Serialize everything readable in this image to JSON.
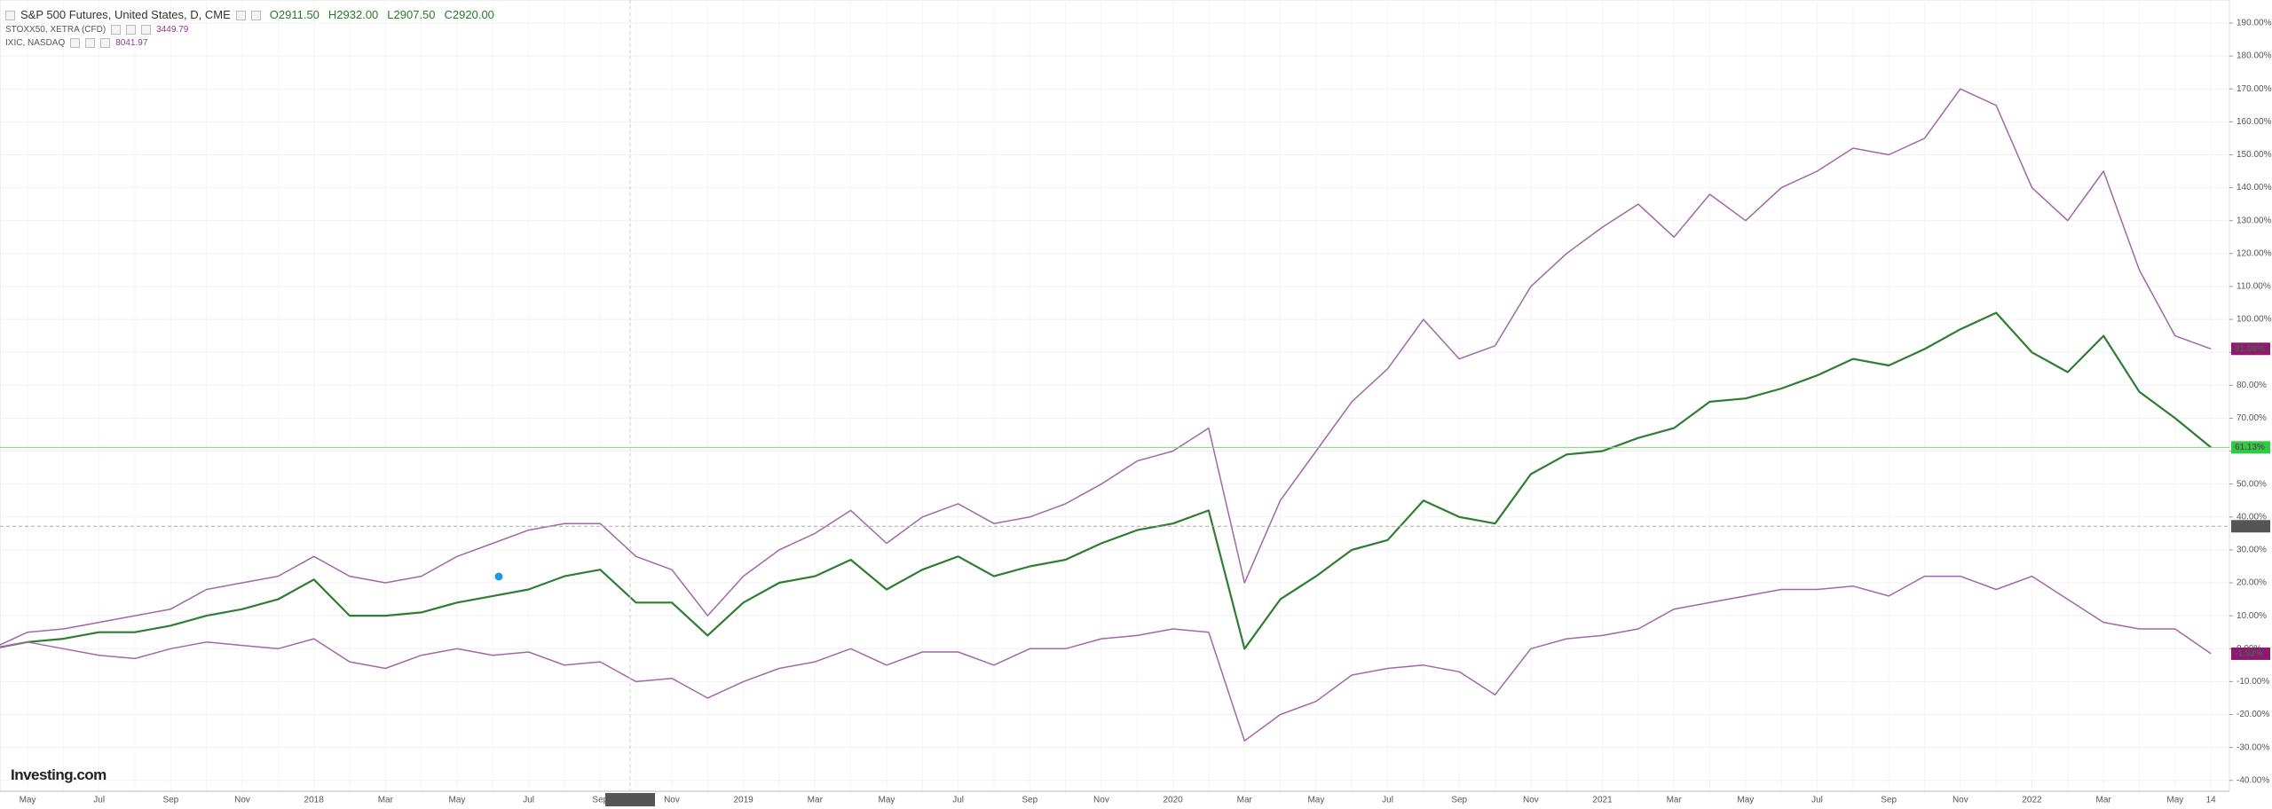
{
  "chart_data": {
    "type": "line",
    "logo": "Investing.com",
    "categories": [
      null,
      "May",
      null,
      "Jul",
      null,
      "Sep",
      null,
      "Nov",
      null,
      "2018",
      null,
      "Mar",
      null,
      "May",
      null,
      "Jul",
      null,
      "Sep",
      null,
      "Nov",
      null,
      "2019",
      null,
      "Mar",
      null,
      "May",
      null,
      "Jul",
      null,
      "Sep",
      null,
      "Nov",
      null,
      "2020",
      null,
      "Mar",
      null,
      "May",
      null,
      "Jul",
      null,
      "Sep",
      null,
      "Nov",
      null,
      "2021",
      null,
      "Mar",
      null,
      "May",
      null,
      "Jul",
      null,
      "Sep",
      null,
      "Nov",
      null,
      "2022",
      null,
      "Mar",
      null,
      "May",
      "14"
    ],
    "series": [
      {
        "name": "S&P 500 Futures, United States, D, CME",
        "color": "#2e7d32",
        "ohlc": [
          "O2911.50",
          "H2932.00",
          "L2907.50",
          "C2920.00"
        ],
        "last_label": "61.13%",
        "values": [
          0,
          2,
          3,
          5,
          5,
          7,
          10,
          12,
          15,
          21,
          10,
          10,
          11,
          14,
          16,
          18,
          22,
          24,
          14,
          14,
          4,
          14,
          20,
          22,
          27,
          18,
          24,
          28,
          22,
          25,
          27,
          32,
          36,
          38,
          42,
          0,
          15,
          22,
          30,
          33,
          45,
          40,
          38,
          53,
          59,
          60,
          64,
          67,
          75,
          76,
          79,
          83,
          88,
          86,
          91,
          97,
          102,
          90,
          84,
          95,
          78,
          70,
          61.13
        ]
      },
      {
        "name": "STOXX50, XETRA (CFD)",
        "color": "#a366a8",
        "last_price": "3449.79",
        "last_label": "-1.53%",
        "values": [
          0,
          2,
          0,
          -2,
          -3,
          0,
          2,
          1,
          0,
          3,
          -4,
          -6,
          -2,
          0,
          -2,
          -1,
          -5,
          -4,
          -10,
          -9,
          -15,
          -10,
          -6,
          -4,
          0,
          -5,
          -1,
          -1,
          -5,
          0,
          0,
          3,
          4,
          6,
          5,
          -28,
          -20,
          -16,
          -8,
          -6,
          -5,
          -7,
          -14,
          0,
          3,
          4,
          6,
          12,
          14,
          16,
          18,
          18,
          19,
          16,
          22,
          22,
          18,
          22,
          15,
          8,
          6,
          6,
          -1.53
        ]
      },
      {
        "name": "IXIC, NASDAQ",
        "color": "#a366a8",
        "last_price": "8041.97",
        "last_label": "91.06%",
        "values": [
          0,
          5,
          6,
          8,
          10,
          12,
          18,
          20,
          22,
          28,
          22,
          20,
          22,
          28,
          32,
          36,
          38,
          38,
          28,
          24,
          10,
          22,
          30,
          35,
          42,
          32,
          40,
          44,
          38,
          40,
          44,
          50,
          57,
          60,
          67,
          20,
          45,
          60,
          75,
          85,
          100,
          88,
          92,
          110,
          120,
          128,
          135,
          125,
          138,
          130,
          140,
          145,
          152,
          150,
          155,
          170,
          165,
          140,
          130,
          145,
          115,
          95,
          91.06
        ]
      }
    ],
    "crosshair": {
      "x_label": "2018-09-27",
      "y_label": "37.18",
      "y": 37.18
    },
    "ylim": [
      -43.3,
      197
    ],
    "yticks": [
      {
        "value": -40,
        "label": "-40.00%"
      },
      {
        "value": -30,
        "label": "-30.00%"
      },
      {
        "value": -20,
        "label": "-20.00%"
      },
      {
        "value": -10,
        "label": "-10.00%"
      },
      {
        "value": 0,
        "label": "0.00%"
      },
      {
        "value": 10,
        "label": "10.00%"
      },
      {
        "value": 20,
        "label": "20.00%"
      },
      {
        "value": 30,
        "label": "30.00%"
      },
      {
        "value": 40,
        "label": "40.00%"
      },
      {
        "value": 50,
        "label": "50.00%"
      },
      {
        "value": 60,
        "label": "60.00%"
      },
      {
        "value": 70,
        "label": "70.00%"
      },
      {
        "value": 80,
        "label": "80.00%"
      },
      {
        "value": 90,
        "label": "90.00%"
      },
      {
        "value": 100,
        "label": "100.00%"
      },
      {
        "value": 110,
        "label": "110.00%"
      },
      {
        "value": 120,
        "label": "120.00%"
      },
      {
        "value": 130,
        "label": "130.00%"
      },
      {
        "value": 140,
        "label": "140.00%"
      },
      {
        "value": 150,
        "label": "150.00%"
      },
      {
        "value": 160,
        "label": "160.00%"
      },
      {
        "value": 170,
        "label": "170.00%"
      },
      {
        "value": 180,
        "label": "180.00%"
      },
      {
        "value": 190,
        "label": "190.00%"
      }
    ],
    "grid": true
  }
}
